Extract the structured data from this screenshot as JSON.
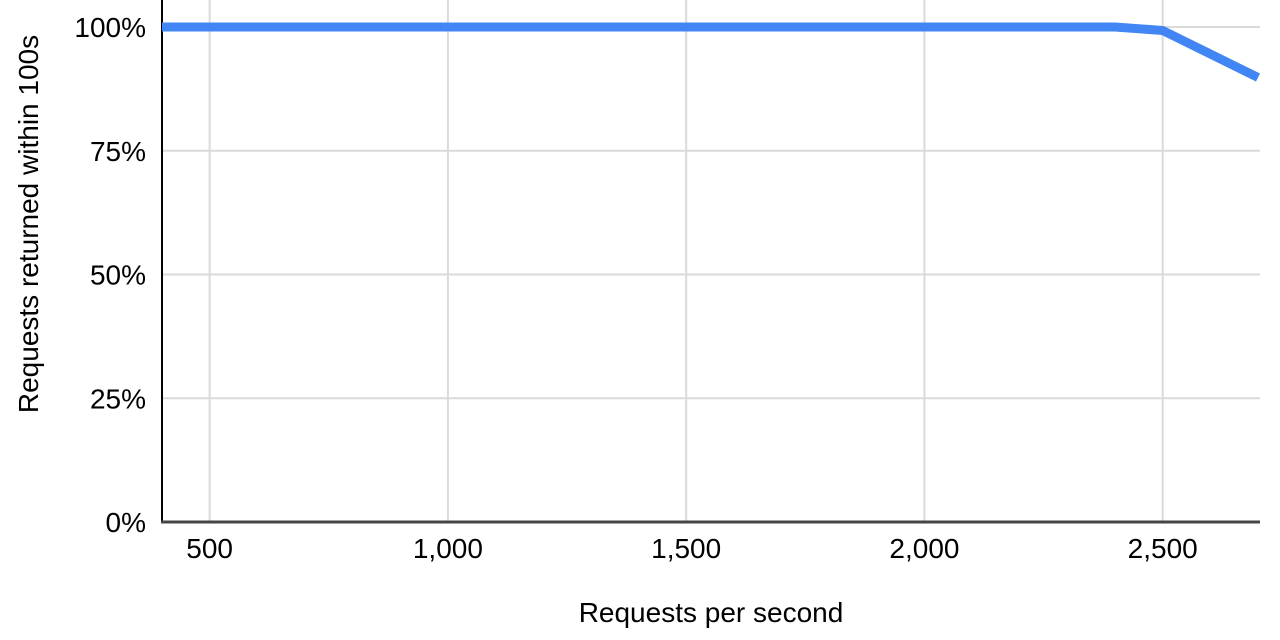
{
  "chart_data": {
    "type": "line",
    "title": "",
    "xlabel": "Requests per second",
    "ylabel": "Requests returned within 100s",
    "x_range": [
      400,
      2700
    ],
    "y_range": [
      0,
      100
    ],
    "x_ticks": [
      {
        "v": 500,
        "label": "500"
      },
      {
        "v": 1000,
        "label": "1,000"
      },
      {
        "v": 1500,
        "label": "1,500"
      },
      {
        "v": 2000,
        "label": "2,000"
      },
      {
        "v": 2500,
        "label": "2,500"
      }
    ],
    "y_ticks": [
      {
        "v": 0,
        "label": "0%"
      },
      {
        "v": 25,
        "label": "25%"
      },
      {
        "v": 50,
        "label": "50%"
      },
      {
        "v": 75,
        "label": "75%"
      },
      {
        "v": 100,
        "label": "100%"
      }
    ],
    "grid": true,
    "legend": "none",
    "series": [
      {
        "name": "Requests returned within 100s",
        "color": "#4285f4",
        "points": [
          [
            400,
            100
          ],
          [
            2400,
            100
          ],
          [
            2500,
            99.3
          ],
          [
            2700,
            89.8
          ]
        ]
      }
    ]
  },
  "colors": {
    "background": "#ffffff",
    "series_line": "#4285f4",
    "gridline": "#dadada",
    "y_axis_line": "#000000",
    "x_axis_line": "#454545",
    "text": "#000000"
  }
}
